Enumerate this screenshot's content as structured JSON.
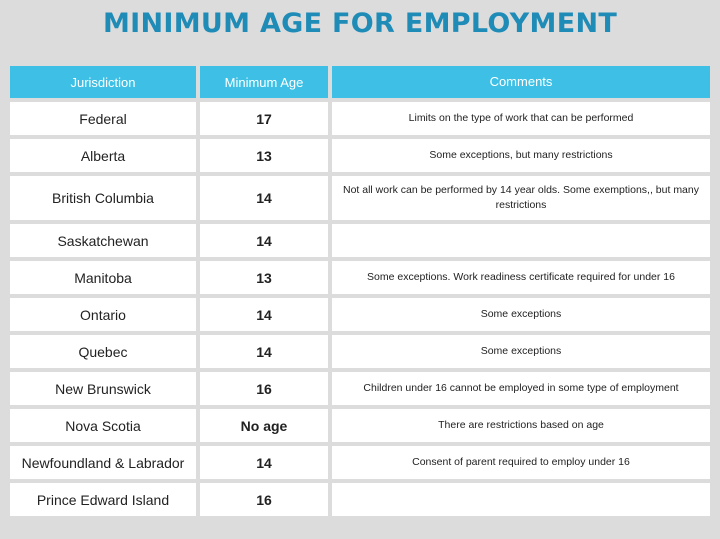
{
  "title": "MINIMUM AGE FOR EMPLOYMENT",
  "headers": {
    "jurisdiction": "Jurisdiction",
    "minimum_age": "Minimum Age",
    "comments": "Comments"
  },
  "rows": [
    {
      "jurisdiction": "Federal",
      "age": "17",
      "comment": "Limits on the type of work that can be performed"
    },
    {
      "jurisdiction": "Alberta",
      "age": "13",
      "comment": "Some exceptions, but many restrictions"
    },
    {
      "jurisdiction": "British Columbia",
      "age": "14",
      "comment": "Not all work can be performed by 14 year olds. Some exemptions,, but many restrictions"
    },
    {
      "jurisdiction": "Saskatchewan",
      "age": "14",
      "comment": ""
    },
    {
      "jurisdiction": "Manitoba",
      "age": "13",
      "comment": "Some exceptions. Work readiness certificate required for under 16"
    },
    {
      "jurisdiction": "Ontario",
      "age": "14",
      "comment": "Some exceptions"
    },
    {
      "jurisdiction": "Quebec",
      "age": "14",
      "comment": "Some exceptions"
    },
    {
      "jurisdiction": "New Brunswick",
      "age": "16",
      "comment": "Children under 16 cannot be employed in some type of employment"
    },
    {
      "jurisdiction": "Nova Scotia",
      "age": "No age",
      "comment": "There are restrictions based on age"
    },
    {
      "jurisdiction": "Newfoundland & Labrador",
      "age": "14",
      "comment": "Consent of parent required to employ under 16"
    },
    {
      "jurisdiction": "Prince Edward Island",
      "age": "16",
      "comment": ""
    }
  ]
}
